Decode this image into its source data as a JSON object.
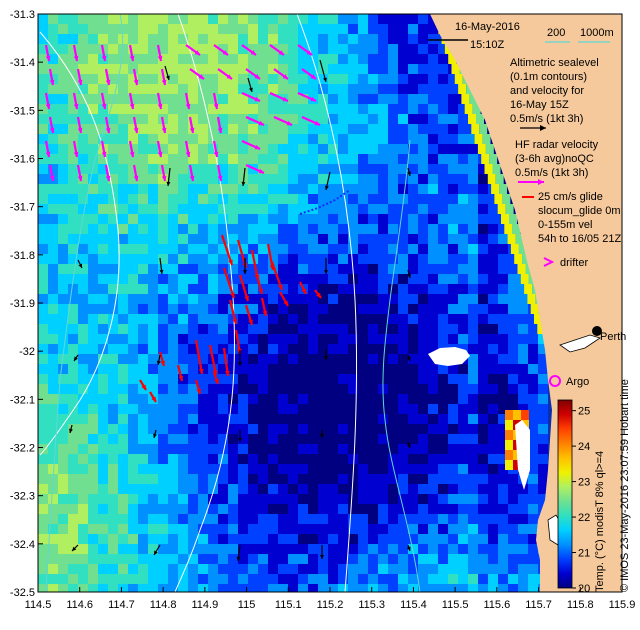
{
  "map": {
    "lon_range": [
      114.5,
      115.9
    ],
    "lat_range": [
      -32.5,
      -31.3
    ],
    "x_ticks": [
      "114.5",
      "114.6",
      "114.7",
      "114.8",
      "114.9",
      "115",
      "115.1",
      "115.2",
      "115.3",
      "115.4",
      "115.5",
      "115.6",
      "115.7",
      "115.8",
      "115.9"
    ],
    "y_ticks": [
      "-31.3",
      "-31.4",
      "-31.5",
      "-31.6",
      "-31.7",
      "-31.8",
      "-31.9",
      "-32",
      "-32.1",
      "-32.2",
      "-32.3",
      "-32.4",
      "-32.5"
    ],
    "land_color": "#f5c99b",
    "radar_arrow_color": "#ff00ff",
    "glider_arrow_color": "#ff0000",
    "altimetry_arrow_color": "#000000",
    "contour_color": "#ffffff",
    "shelf_contour_color": "#5fd7d7"
  },
  "header": {
    "date": "16-May-2016",
    "time": "15:10Z",
    "depth_label_200": "200",
    "depth_label_1000": "1000m"
  },
  "legend": {
    "altimetry_lines": [
      "Altimetric sealevel",
      "(0.1m contours)",
      "and velocity for",
      "16-May 15Z",
      "0.5m/s (1kt 3h)"
    ],
    "radar_lines": [
      "HF radar velocity",
      "(3-6h avg)noQC",
      "0.5m/s (1kt 3h)"
    ],
    "glider_lines": [
      "25 cm/s glide",
      "slocum_glide 0m",
      "0-155m vel",
      "54h to 16/05 21Z"
    ],
    "drifter": "drifter",
    "argo": "Argo",
    "place": "Perth"
  },
  "colorbar": {
    "ticks": [
      "20",
      "21",
      "22",
      "23",
      "24",
      "25"
    ],
    "range": [
      20,
      25.3
    ],
    "title": "Temp. (°C) modisT 8% ql>=4",
    "credit": "© IMOS 23-May-2016 23:07:59 Hobart time",
    "colors": [
      "#000080",
      "#0000d0",
      "#0040ff",
      "#0090ff",
      "#00d0ff",
      "#30e0c0",
      "#70e090",
      "#b0f060",
      "#f0f000",
      "#ffc000",
      "#ff8000",
      "#ff4000",
      "#d00000",
      "#800000"
    ]
  }
}
